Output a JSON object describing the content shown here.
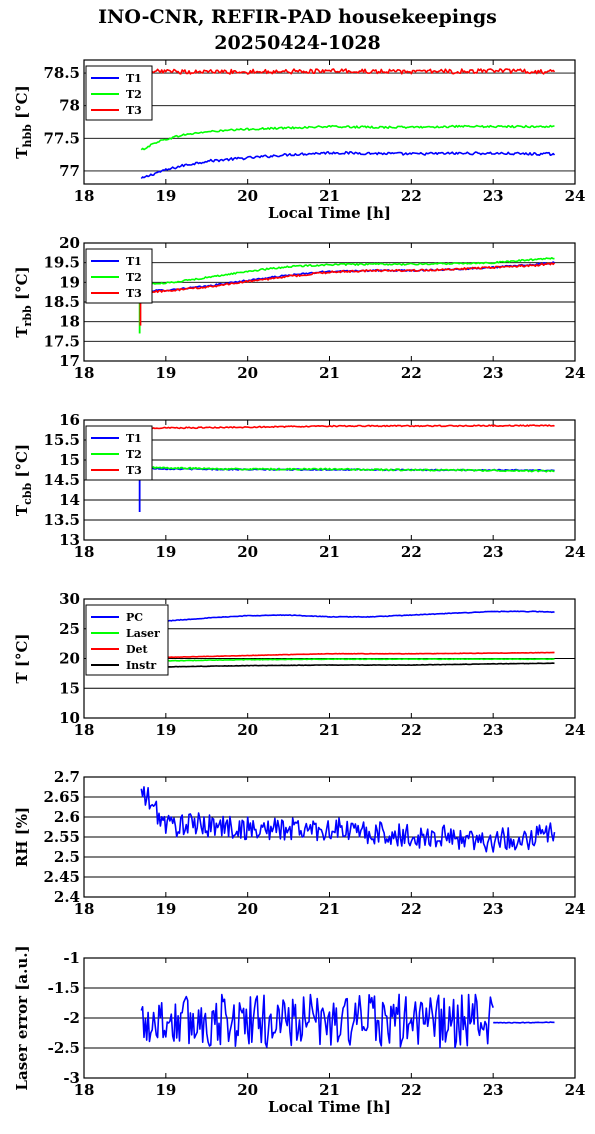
{
  "title": {
    "line1": "INO-CNR, REFIR-PAD housekeepings",
    "line2": "20250424-1028"
  },
  "chart_data": [
    {
      "type": "line",
      "ylabel": "T_hbb [°C]",
      "xlabel": "Local Time [h]",
      "xlim": [
        18,
        24
      ],
      "ylim": [
        76.8,
        78.7
      ],
      "yticks": [
        77,
        77.5,
        78,
        78.5
      ],
      "ytick_labels": [
        "77",
        "77.5",
        "78",
        "78.5"
      ],
      "legend": "top-left",
      "grid": true,
      "series": [
        {
          "name": "T1",
          "color": "#0000ff",
          "x": [
            18.7,
            18.9,
            19.2,
            19.5,
            20.0,
            20.5,
            21.0,
            21.5,
            22.0,
            22.5,
            23.0,
            23.5,
            23.75
          ],
          "y": [
            76.88,
            76.98,
            77.08,
            77.15,
            77.2,
            77.25,
            77.28,
            77.27,
            77.26,
            77.27,
            77.27,
            77.26,
            77.26
          ],
          "noise": 0.02
        },
        {
          "name": "T2",
          "color": "#00ff00",
          "x": [
            18.7,
            18.9,
            19.2,
            19.5,
            20.0,
            20.5,
            21.0,
            21.5,
            22.0,
            22.5,
            23.0,
            23.5,
            23.75
          ],
          "y": [
            77.32,
            77.45,
            77.55,
            77.6,
            77.64,
            77.66,
            77.68,
            77.67,
            77.67,
            77.68,
            77.68,
            77.68,
            77.68
          ],
          "noise": 0.015
        },
        {
          "name": "T3",
          "color": "#ff0000",
          "x": [
            18.7,
            19.0,
            20.0,
            21.0,
            22.0,
            23.0,
            23.75
          ],
          "y": [
            78.53,
            78.52,
            78.52,
            78.53,
            78.52,
            78.53,
            78.52
          ],
          "noise": 0.035
        }
      ]
    },
    {
      "type": "line",
      "ylabel": "T_rbb [°C]",
      "xlabel": "",
      "xlim": [
        18,
        24
      ],
      "ylim": [
        17,
        20
      ],
      "yticks": [
        17,
        17.5,
        18,
        18.5,
        19,
        19.5,
        20
      ],
      "ytick_labels": [
        "17",
        "17.5",
        "18",
        "18.5",
        "19",
        "19.5",
        "20"
      ],
      "legend": "top-left",
      "grid": true,
      "series": [
        {
          "name": "T1",
          "color": "#0000ff",
          "x": [
            18.7,
            19.0,
            19.5,
            20.0,
            20.5,
            21.0,
            21.5,
            22.0,
            22.5,
            23.0,
            23.5,
            23.75
          ],
          "y": [
            18.78,
            18.8,
            18.9,
            19.05,
            19.18,
            19.28,
            19.3,
            19.3,
            19.33,
            19.38,
            19.45,
            19.5
          ],
          "noise": 0.02
        },
        {
          "name": "T2",
          "color": "#00ff00",
          "x": [
            18.7,
            19.0,
            19.5,
            20.0,
            20.5,
            21.0,
            21.5,
            22.0,
            22.5,
            23.0,
            23.5,
            23.75
          ],
          "y": [
            18.95,
            18.98,
            19.12,
            19.28,
            19.4,
            19.45,
            19.46,
            19.46,
            19.48,
            19.5,
            19.58,
            19.62
          ],
          "noise": 0.02
        },
        {
          "name": "T3",
          "color": "#ff0000",
          "x": [
            18.7,
            19.0,
            19.5,
            20.0,
            20.5,
            21.0,
            21.5,
            22.0,
            22.5,
            23.0,
            23.5,
            23.75
          ],
          "y": [
            18.74,
            18.78,
            18.88,
            19.02,
            19.15,
            19.26,
            19.3,
            19.3,
            19.33,
            19.38,
            19.43,
            19.48
          ],
          "noise": 0.025
        }
      ],
      "spikes": [
        {
          "color": "#00ff00",
          "x": 18.68,
          "y0": 17.7,
          "y1": 18.9
        },
        {
          "color": "#ff0000",
          "x": 18.69,
          "y0": 17.9,
          "y1": 18.7
        }
      ]
    },
    {
      "type": "line",
      "ylabel": "T_cbb [°C]",
      "xlabel": "",
      "xlim": [
        18,
        24
      ],
      "ylim": [
        13,
        16
      ],
      "yticks": [
        13,
        13.5,
        14,
        14.5,
        15,
        15.5,
        16
      ],
      "ytick_labels": [
        "13",
        "13.5",
        "14",
        "14.5",
        "15",
        "15.5",
        "16"
      ],
      "legend": "top-left",
      "grid": true,
      "series": [
        {
          "name": "T1",
          "color": "#0000ff",
          "x": [
            18.7,
            19.0,
            20.0,
            21.0,
            22.0,
            23.0,
            23.75
          ],
          "y": [
            14.8,
            14.78,
            14.76,
            14.76,
            14.75,
            14.75,
            14.74
          ],
          "noise": 0.015
        },
        {
          "name": "T2",
          "color": "#00ff00",
          "x": [
            18.7,
            19.0,
            20.0,
            21.0,
            22.0,
            23.0,
            23.75
          ],
          "y": [
            14.82,
            14.8,
            14.77,
            14.77,
            14.75,
            14.74,
            14.72
          ],
          "noise": 0.02
        },
        {
          "name": "T3",
          "color": "#ff0000",
          "x": [
            18.7,
            19.0,
            20.0,
            21.0,
            22.0,
            23.0,
            23.75
          ],
          "y": [
            15.8,
            15.8,
            15.82,
            15.85,
            15.85,
            15.86,
            15.86
          ],
          "noise": 0.015
        }
      ],
      "spikes": [
        {
          "color": "#0000ff",
          "x": 18.68,
          "y0": 13.7,
          "y1": 14.8
        }
      ]
    },
    {
      "type": "line",
      "ylabel": "T [°C]",
      "xlabel": "",
      "xlim": [
        18,
        24
      ],
      "ylim": [
        10,
        30
      ],
      "yticks": [
        10,
        15,
        20,
        25,
        30
      ],
      "ytick_labels": [
        "10",
        "15",
        "20",
        "25",
        "30"
      ],
      "legend": "top-left",
      "grid": true,
      "series": [
        {
          "name": "PC",
          "color": "#0000ff",
          "x": [
            18.7,
            19.0,
            19.5,
            20.0,
            20.5,
            21.0,
            21.5,
            22.0,
            22.5,
            23.0,
            23.5,
            23.75
          ],
          "y": [
            26.2,
            26.3,
            26.8,
            27.2,
            27.3,
            27.0,
            27.0,
            27.3,
            27.6,
            27.9,
            27.9,
            27.8
          ],
          "noise": 0.05
        },
        {
          "name": "Laser",
          "color": "#00ff00",
          "x": [
            18.7,
            19.0,
            20.0,
            21.0,
            22.0,
            23.0,
            23.75
          ],
          "y": [
            19.5,
            19.6,
            19.8,
            19.9,
            19.9,
            19.9,
            19.9
          ],
          "noise": 0.04
        },
        {
          "name": "Det",
          "color": "#ff0000",
          "x": [
            18.7,
            19.0,
            20.0,
            21.0,
            22.0,
            23.0,
            23.75
          ],
          "y": [
            20.1,
            20.2,
            20.5,
            20.8,
            20.8,
            20.9,
            21.0
          ],
          "noise": 0.03
        },
        {
          "name": "Instr",
          "color": "#000000",
          "x": [
            18.7,
            19.0,
            20.0,
            21.0,
            22.0,
            23.0,
            23.75
          ],
          "y": [
            18.5,
            18.6,
            18.8,
            18.9,
            18.9,
            19.1,
            19.2
          ],
          "noise": 0.03
        }
      ]
    },
    {
      "type": "line",
      "ylabel": "RH [%]",
      "xlabel": "",
      "xlim": [
        18,
        24
      ],
      "ylim": [
        2.4,
        2.7
      ],
      "yticks": [
        2.4,
        2.45,
        2.5,
        2.55,
        2.6,
        2.65,
        2.7
      ],
      "ytick_labels": [
        "2.4",
        "2.45",
        "2.5",
        "2.55",
        "2.6",
        "2.65",
        "2.7"
      ],
      "grid": true,
      "series": [
        {
          "name": "",
          "color": "#0000ff",
          "x": [
            18.7,
            18.8,
            19.0,
            19.5,
            20.0,
            20.5,
            21.0,
            21.5,
            22.0,
            22.5,
            23.0,
            23.5,
            23.75
          ],
          "y": [
            2.66,
            2.64,
            2.58,
            2.58,
            2.57,
            2.57,
            2.57,
            2.56,
            2.55,
            2.55,
            2.54,
            2.55,
            2.57
          ],
          "noise": 0.03
        }
      ]
    },
    {
      "type": "line",
      "ylabel": "Laser error [a.u.]",
      "xlabel": "Local Time [h]",
      "xlim": [
        18,
        24
      ],
      "ylim": [
        -3,
        -1
      ],
      "yticks": [
        -3,
        -2.5,
        -2,
        -1.5,
        -1
      ],
      "ytick_labels": [
        "-3",
        "-2.5",
        "-2",
        "-1.5",
        "-1"
      ],
      "grid": true,
      "series": [
        {
          "name": "",
          "color": "#0000ff",
          "x": [
            18.7,
            19.0,
            20.0,
            21.0,
            22.0,
            23.0
          ],
          "y": [
            -2.05,
            -2.05,
            -2.05,
            -2.05,
            -2.05,
            -2.05
          ],
          "noise": 0.45
        },
        {
          "name": "",
          "color": "#0000ff",
          "x": [
            23.0,
            23.2,
            23.75
          ],
          "y": [
            -2.08,
            -2.08,
            -2.07
          ],
          "noise": 0.005
        }
      ]
    }
  ],
  "axis_xticks": [
    18,
    19,
    20,
    21,
    22,
    23,
    24
  ],
  "axis_xtick_labels": [
    "18",
    "19",
    "20",
    "21",
    "22",
    "23",
    "24"
  ]
}
